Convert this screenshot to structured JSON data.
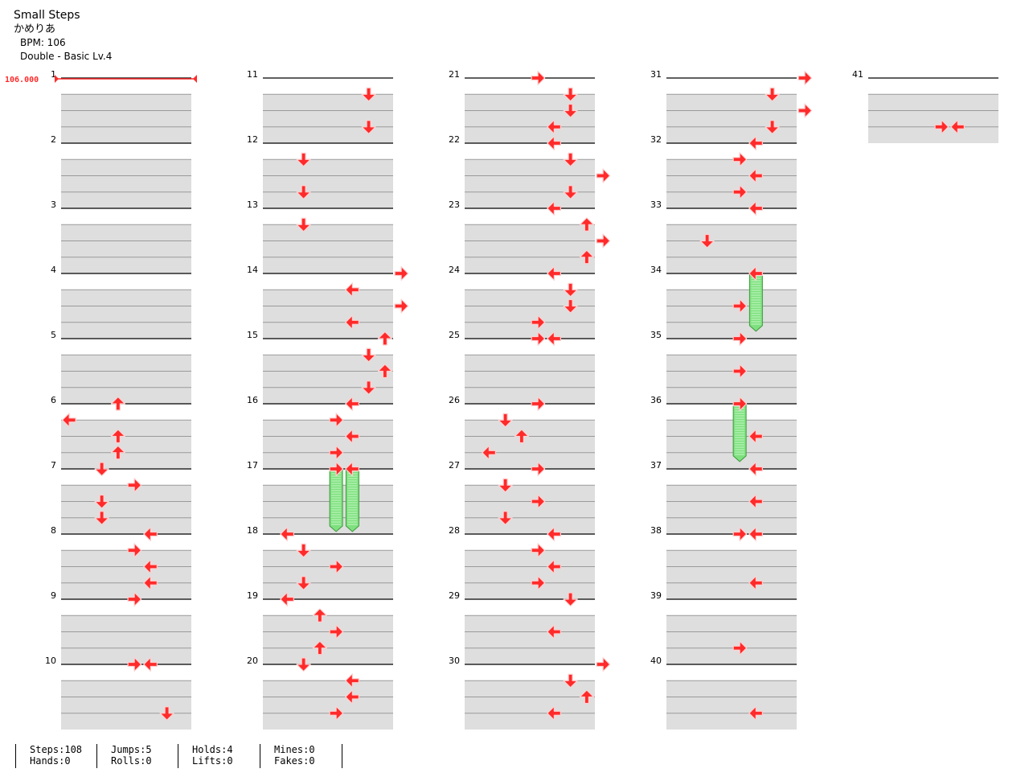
{
  "song": {
    "title": "Small Steps",
    "artist": "かめりあ",
    "bpm_label": "BPM: 106",
    "difficulty_label": "Double - Basic  Lv.4"
  },
  "bpm_marker": {
    "label": "106.000",
    "measure": 1
  },
  "colors": {
    "arrow_fill": "#ff2a2a",
    "arrow_border": "#ffd0d0",
    "hold_fill": "#7ee07e",
    "hold_stripe": "#c8f7c8",
    "hold_border": "#3c9a3c",
    "band": "#dedede",
    "bpm": "#ff2a2a"
  },
  "measure_count": 41,
  "notes": [
    {
      "m": 6,
      "b": 0,
      "l": 3,
      "d": "up"
    },
    {
      "m": 6,
      "b": 1,
      "l": 0,
      "d": "left"
    },
    {
      "m": 6,
      "b": 2,
      "l": 3,
      "d": "up"
    },
    {
      "m": 6,
      "b": 3,
      "l": 3,
      "d": "up"
    },
    {
      "m": 7,
      "b": 0,
      "l": 2,
      "d": "down"
    },
    {
      "m": 7,
      "b": 1,
      "l": 4,
      "d": "right"
    },
    {
      "m": 7,
      "b": 2,
      "l": 2,
      "d": "down"
    },
    {
      "m": 7,
      "b": 3,
      "l": 2,
      "d": "down"
    },
    {
      "m": 8,
      "b": 0,
      "l": 5,
      "d": "left"
    },
    {
      "m": 8,
      "b": 1,
      "l": 4,
      "d": "right"
    },
    {
      "m": 8,
      "b": 2,
      "l": 5,
      "d": "left"
    },
    {
      "m": 8,
      "b": 3,
      "l": 5,
      "d": "left"
    },
    {
      "m": 9,
      "b": 0,
      "l": 4,
      "d": "right"
    },
    {
      "m": 10,
      "b": 0,
      "l": 4,
      "d": "right"
    },
    {
      "m": 10,
      "b": 0,
      "l": 5,
      "d": "left"
    },
    {
      "m": 10,
      "b": 3,
      "l": 6,
      "d": "down"
    },
    {
      "m": 11,
      "b": 1,
      "l": 6,
      "d": "down"
    },
    {
      "m": 11,
      "b": 3,
      "l": 6,
      "d": "down"
    },
    {
      "m": 12,
      "b": 1,
      "l": 2,
      "d": "down"
    },
    {
      "m": 12,
      "b": 3,
      "l": 2,
      "d": "down"
    },
    {
      "m": 13,
      "b": 1,
      "l": 2,
      "d": "down"
    },
    {
      "m": 14,
      "b": 0,
      "l": 8,
      "d": "right"
    },
    {
      "m": 14,
      "b": 1,
      "l": 5,
      "d": "left"
    },
    {
      "m": 14,
      "b": 2,
      "l": 8,
      "d": "right"
    },
    {
      "m": 14,
      "b": 3,
      "l": 5,
      "d": "left"
    },
    {
      "m": 15,
      "b": 0,
      "l": 7,
      "d": "up"
    },
    {
      "m": 15,
      "b": 1,
      "l": 6,
      "d": "down"
    },
    {
      "m": 15,
      "b": 2,
      "l": 7,
      "d": "up"
    },
    {
      "m": 15,
      "b": 3,
      "l": 6,
      "d": "down"
    },
    {
      "m": 16,
      "b": 0,
      "l": 5,
      "d": "left"
    },
    {
      "m": 16,
      "b": 1,
      "l": 4,
      "d": "right"
    },
    {
      "m": 16,
      "b": 2,
      "l": 5,
      "d": "left"
    },
    {
      "m": 16,
      "b": 3,
      "l": 4,
      "d": "right"
    },
    {
      "m": 17,
      "b": 0,
      "l": 4,
      "d": "right",
      "hold": 3.5
    },
    {
      "m": 17,
      "b": 0,
      "l": 5,
      "d": "left",
      "hold": 3.5
    },
    {
      "m": 18,
      "b": 0,
      "l": 1,
      "d": "left"
    },
    {
      "m": 18,
      "b": 1,
      "l": 2,
      "d": "down"
    },
    {
      "m": 18,
      "b": 2,
      "l": 4,
      "d": "right"
    },
    {
      "m": 18,
      "b": 3,
      "l": 2,
      "d": "down"
    },
    {
      "m": 19,
      "b": 0,
      "l": 1,
      "d": "left"
    },
    {
      "m": 19,
      "b": 1,
      "l": 3,
      "d": "up"
    },
    {
      "m": 19,
      "b": 2,
      "l": 4,
      "d": "right"
    },
    {
      "m": 19,
      "b": 3,
      "l": 3,
      "d": "up"
    },
    {
      "m": 20,
      "b": 0,
      "l": 2,
      "d": "down"
    },
    {
      "m": 20,
      "b": 1,
      "l": 5,
      "d": "left"
    },
    {
      "m": 20,
      "b": 2,
      "l": 5,
      "d": "left"
    },
    {
      "m": 20,
      "b": 3,
      "l": 4,
      "d": "right"
    },
    {
      "m": 21,
      "b": 0,
      "l": 4,
      "d": "right"
    },
    {
      "m": 21,
      "b": 1,
      "l": 6,
      "d": "down"
    },
    {
      "m": 21,
      "b": 2,
      "l": 6,
      "d": "down"
    },
    {
      "m": 21,
      "b": 3,
      "l": 5,
      "d": "left"
    },
    {
      "m": 22,
      "b": 0,
      "l": 5,
      "d": "left"
    },
    {
      "m": 22,
      "b": 1,
      "l": 6,
      "d": "down"
    },
    {
      "m": 22,
      "b": 2,
      "l": 8,
      "d": "right"
    },
    {
      "m": 22,
      "b": 3,
      "l": 6,
      "d": "down"
    },
    {
      "m": 23,
      "b": 0,
      "l": 5,
      "d": "left"
    },
    {
      "m": 23,
      "b": 1,
      "l": 7,
      "d": "up"
    },
    {
      "m": 23,
      "b": 2,
      "l": 8,
      "d": "right"
    },
    {
      "m": 23,
      "b": 3,
      "l": 7,
      "d": "up"
    },
    {
      "m": 24,
      "b": 0,
      "l": 5,
      "d": "left"
    },
    {
      "m": 24,
      "b": 1,
      "l": 6,
      "d": "down"
    },
    {
      "m": 24,
      "b": 2,
      "l": 6,
      "d": "down"
    },
    {
      "m": 24,
      "b": 3,
      "l": 4,
      "d": "right"
    },
    {
      "m": 25,
      "b": 0,
      "l": 4,
      "d": "right"
    },
    {
      "m": 25,
      "b": 0,
      "l": 5,
      "d": "left"
    },
    {
      "m": 26,
      "b": 0,
      "l": 4,
      "d": "right"
    },
    {
      "m": 26,
      "b": 1,
      "l": 2,
      "d": "down"
    },
    {
      "m": 26,
      "b": 2,
      "l": 3,
      "d": "up"
    },
    {
      "m": 26,
      "b": 3,
      "l": 1,
      "d": "left"
    },
    {
      "m": 27,
      "b": 0,
      "l": 4,
      "d": "right"
    },
    {
      "m": 27,
      "b": 1,
      "l": 2,
      "d": "down"
    },
    {
      "m": 27,
      "b": 2,
      "l": 4,
      "d": "right"
    },
    {
      "m": 27,
      "b": 3,
      "l": 2,
      "d": "down"
    },
    {
      "m": 28,
      "b": 0,
      "l": 5,
      "d": "left"
    },
    {
      "m": 28,
      "b": 1,
      "l": 4,
      "d": "right"
    },
    {
      "m": 28,
      "b": 2,
      "l": 5,
      "d": "left"
    },
    {
      "m": 28,
      "b": 3,
      "l": 4,
      "d": "right"
    },
    {
      "m": 29,
      "b": 0,
      "l": 6,
      "d": "down"
    },
    {
      "m": 29,
      "b": 2,
      "l": 5,
      "d": "left"
    },
    {
      "m": 30,
      "b": 0,
      "l": 8,
      "d": "right"
    },
    {
      "m": 30,
      "b": 1,
      "l": 6,
      "d": "down"
    },
    {
      "m": 30,
      "b": 2,
      "l": 7,
      "d": "up"
    },
    {
      "m": 30,
      "b": 3,
      "l": 5,
      "d": "left"
    },
    {
      "m": 31,
      "b": 0,
      "l": 8,
      "d": "right"
    },
    {
      "m": 31,
      "b": 1,
      "l": 6,
      "d": "down"
    },
    {
      "m": 31,
      "b": 2,
      "l": 8,
      "d": "right"
    },
    {
      "m": 31,
      "b": 3,
      "l": 6,
      "d": "down"
    },
    {
      "m": 32,
      "b": 0,
      "l": 5,
      "d": "left"
    },
    {
      "m": 32,
      "b": 1,
      "l": 4,
      "d": "right"
    },
    {
      "m": 32,
      "b": 2,
      "l": 5,
      "d": "left"
    },
    {
      "m": 32,
      "b": 3,
      "l": 4,
      "d": "right"
    },
    {
      "m": 33,
      "b": 0,
      "l": 5,
      "d": "left"
    },
    {
      "m": 33,
      "b": 2,
      "l": 2,
      "d": "down"
    },
    {
      "m": 34,
      "b": 0,
      "l": 5,
      "d": "left",
      "hold": 3.2
    },
    {
      "m": 34,
      "b": 2,
      "l": 4,
      "d": "right"
    },
    {
      "m": 35,
      "b": 0,
      "l": 4,
      "d": "right"
    },
    {
      "m": 35,
      "b": 2,
      "l": 4,
      "d": "right"
    },
    {
      "m": 36,
      "b": 0,
      "l": 4,
      "d": "right",
      "hold": 3.2
    },
    {
      "m": 36,
      "b": 2,
      "l": 5,
      "d": "left"
    },
    {
      "m": 37,
      "b": 0,
      "l": 5,
      "d": "left"
    },
    {
      "m": 37,
      "b": 2,
      "l": 5,
      "d": "left"
    },
    {
      "m": 38,
      "b": 0,
      "l": 4,
      "d": "right"
    },
    {
      "m": 38,
      "b": 0,
      "l": 5,
      "d": "left"
    },
    {
      "m": 38,
      "b": 3,
      "l": 5,
      "d": "left"
    },
    {
      "m": 39,
      "b": 3,
      "l": 4,
      "d": "right"
    },
    {
      "m": 40,
      "b": 3,
      "l": 5,
      "d": "left"
    },
    {
      "m": 41,
      "b": 3,
      "l": 4,
      "d": "right"
    },
    {
      "m": 41,
      "b": 3,
      "l": 5,
      "d": "left"
    }
  ],
  "stats": [
    {
      "a": "Steps:108",
      "b": "Hands:0"
    },
    {
      "a": "Jumps:5",
      "b": "Rolls:0"
    },
    {
      "a": "Holds:4",
      "b": "Lifts:0"
    },
    {
      "a": "Mines:0",
      "b": "Fakes:0"
    }
  ]
}
